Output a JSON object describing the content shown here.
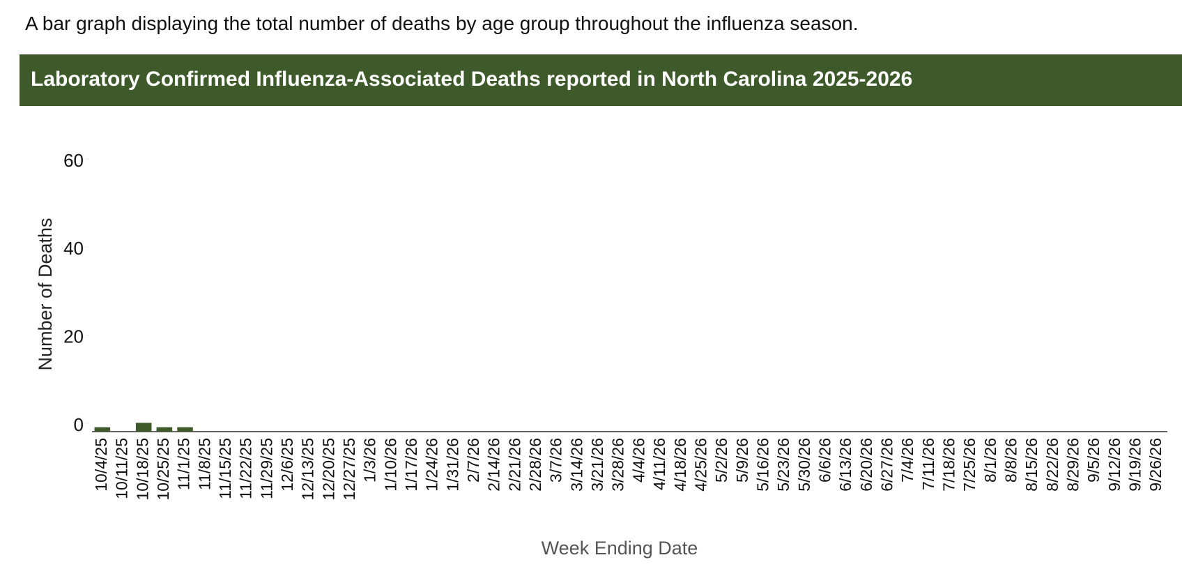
{
  "description": "A bar graph displaying the total number of deaths by age group throughout the influenza season.",
  "chart_data": {
    "type": "bar",
    "title": "Laboratory Confirmed Influenza-Associated Deaths reported in North Carolina 2025-2026",
    "x_label": "Week Ending Date",
    "y_label": "Number of Deaths",
    "categories": [
      "10/4/25",
      "10/11/25",
      "10/18/25",
      "10/25/25",
      "11/1/25",
      "11/8/25",
      "11/15/25",
      "11/22/25",
      "11/29/25",
      "12/6/25",
      "12/13/25",
      "12/20/25",
      "12/27/25",
      "1/3/26",
      "1/10/26",
      "1/17/26",
      "1/24/26",
      "1/31/26",
      "2/7/26",
      "2/14/26",
      "2/21/26",
      "2/28/26",
      "3/7/26",
      "3/14/26",
      "3/21/26",
      "3/28/26",
      "4/4/26",
      "4/11/26",
      "4/18/26",
      "4/25/26",
      "5/2/26",
      "5/9/26",
      "5/16/26",
      "5/23/26",
      "5/30/26",
      "6/6/26",
      "6/13/26",
      "6/20/26",
      "6/27/26",
      "7/4/26",
      "7/11/26",
      "7/18/26",
      "7/25/26",
      "8/1/26",
      "8/8/26",
      "8/15/26",
      "8/22/26",
      "8/29/26",
      "9/5/26",
      "9/12/26",
      "9/19/26",
      "9/26/26"
    ],
    "values": [
      1,
      0,
      2,
      1,
      1,
      null,
      null,
      null,
      null,
      null,
      null,
      null,
      null,
      null,
      null,
      null,
      null,
      null,
      null,
      null,
      null,
      null,
      null,
      null,
      null,
      null,
      null,
      null,
      null,
      null,
      null,
      null,
      null,
      null,
      null,
      null,
      null,
      null,
      null,
      null,
      null,
      null,
      null,
      null,
      null,
      null,
      null,
      null,
      null,
      null,
      null,
      null
    ],
    "color": "#3e5a2a",
    "ylim": [
      0,
      60
    ],
    "yticks": [
      0,
      20,
      40,
      60
    ],
    "grid": false
  }
}
